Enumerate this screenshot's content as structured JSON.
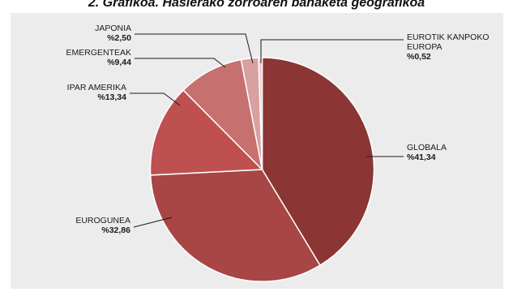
{
  "chart_data": {
    "type": "pie",
    "title": "2. Grafikoa. Hasierako zorroaren banaketa geografikoa",
    "slices": [
      {
        "label": "GLOBALA",
        "value_text": "%41,34",
        "value": 41.34,
        "color": "#8b3535"
      },
      {
        "label": "EUROGUNEA",
        "value_text": "%32,86",
        "value": 32.86,
        "color": "#a84545"
      },
      {
        "label": "IPAR AMERIKA",
        "value_text": "%13,34",
        "value": 13.34,
        "color": "#bf5050"
      },
      {
        "label": "EMERGENTEAK",
        "value_text": "%9,44",
        "value": 9.44,
        "color": "#c67070"
      },
      {
        "label": "JAPONIA",
        "value_text": "%2,50",
        "value": 2.5,
        "color": "#d8a0a0"
      },
      {
        "label": "EUROTIK KANPOKO EUROPA",
        "value_text": "%0,52",
        "value": 0.52,
        "color": "#e8cccc"
      }
    ]
  }
}
